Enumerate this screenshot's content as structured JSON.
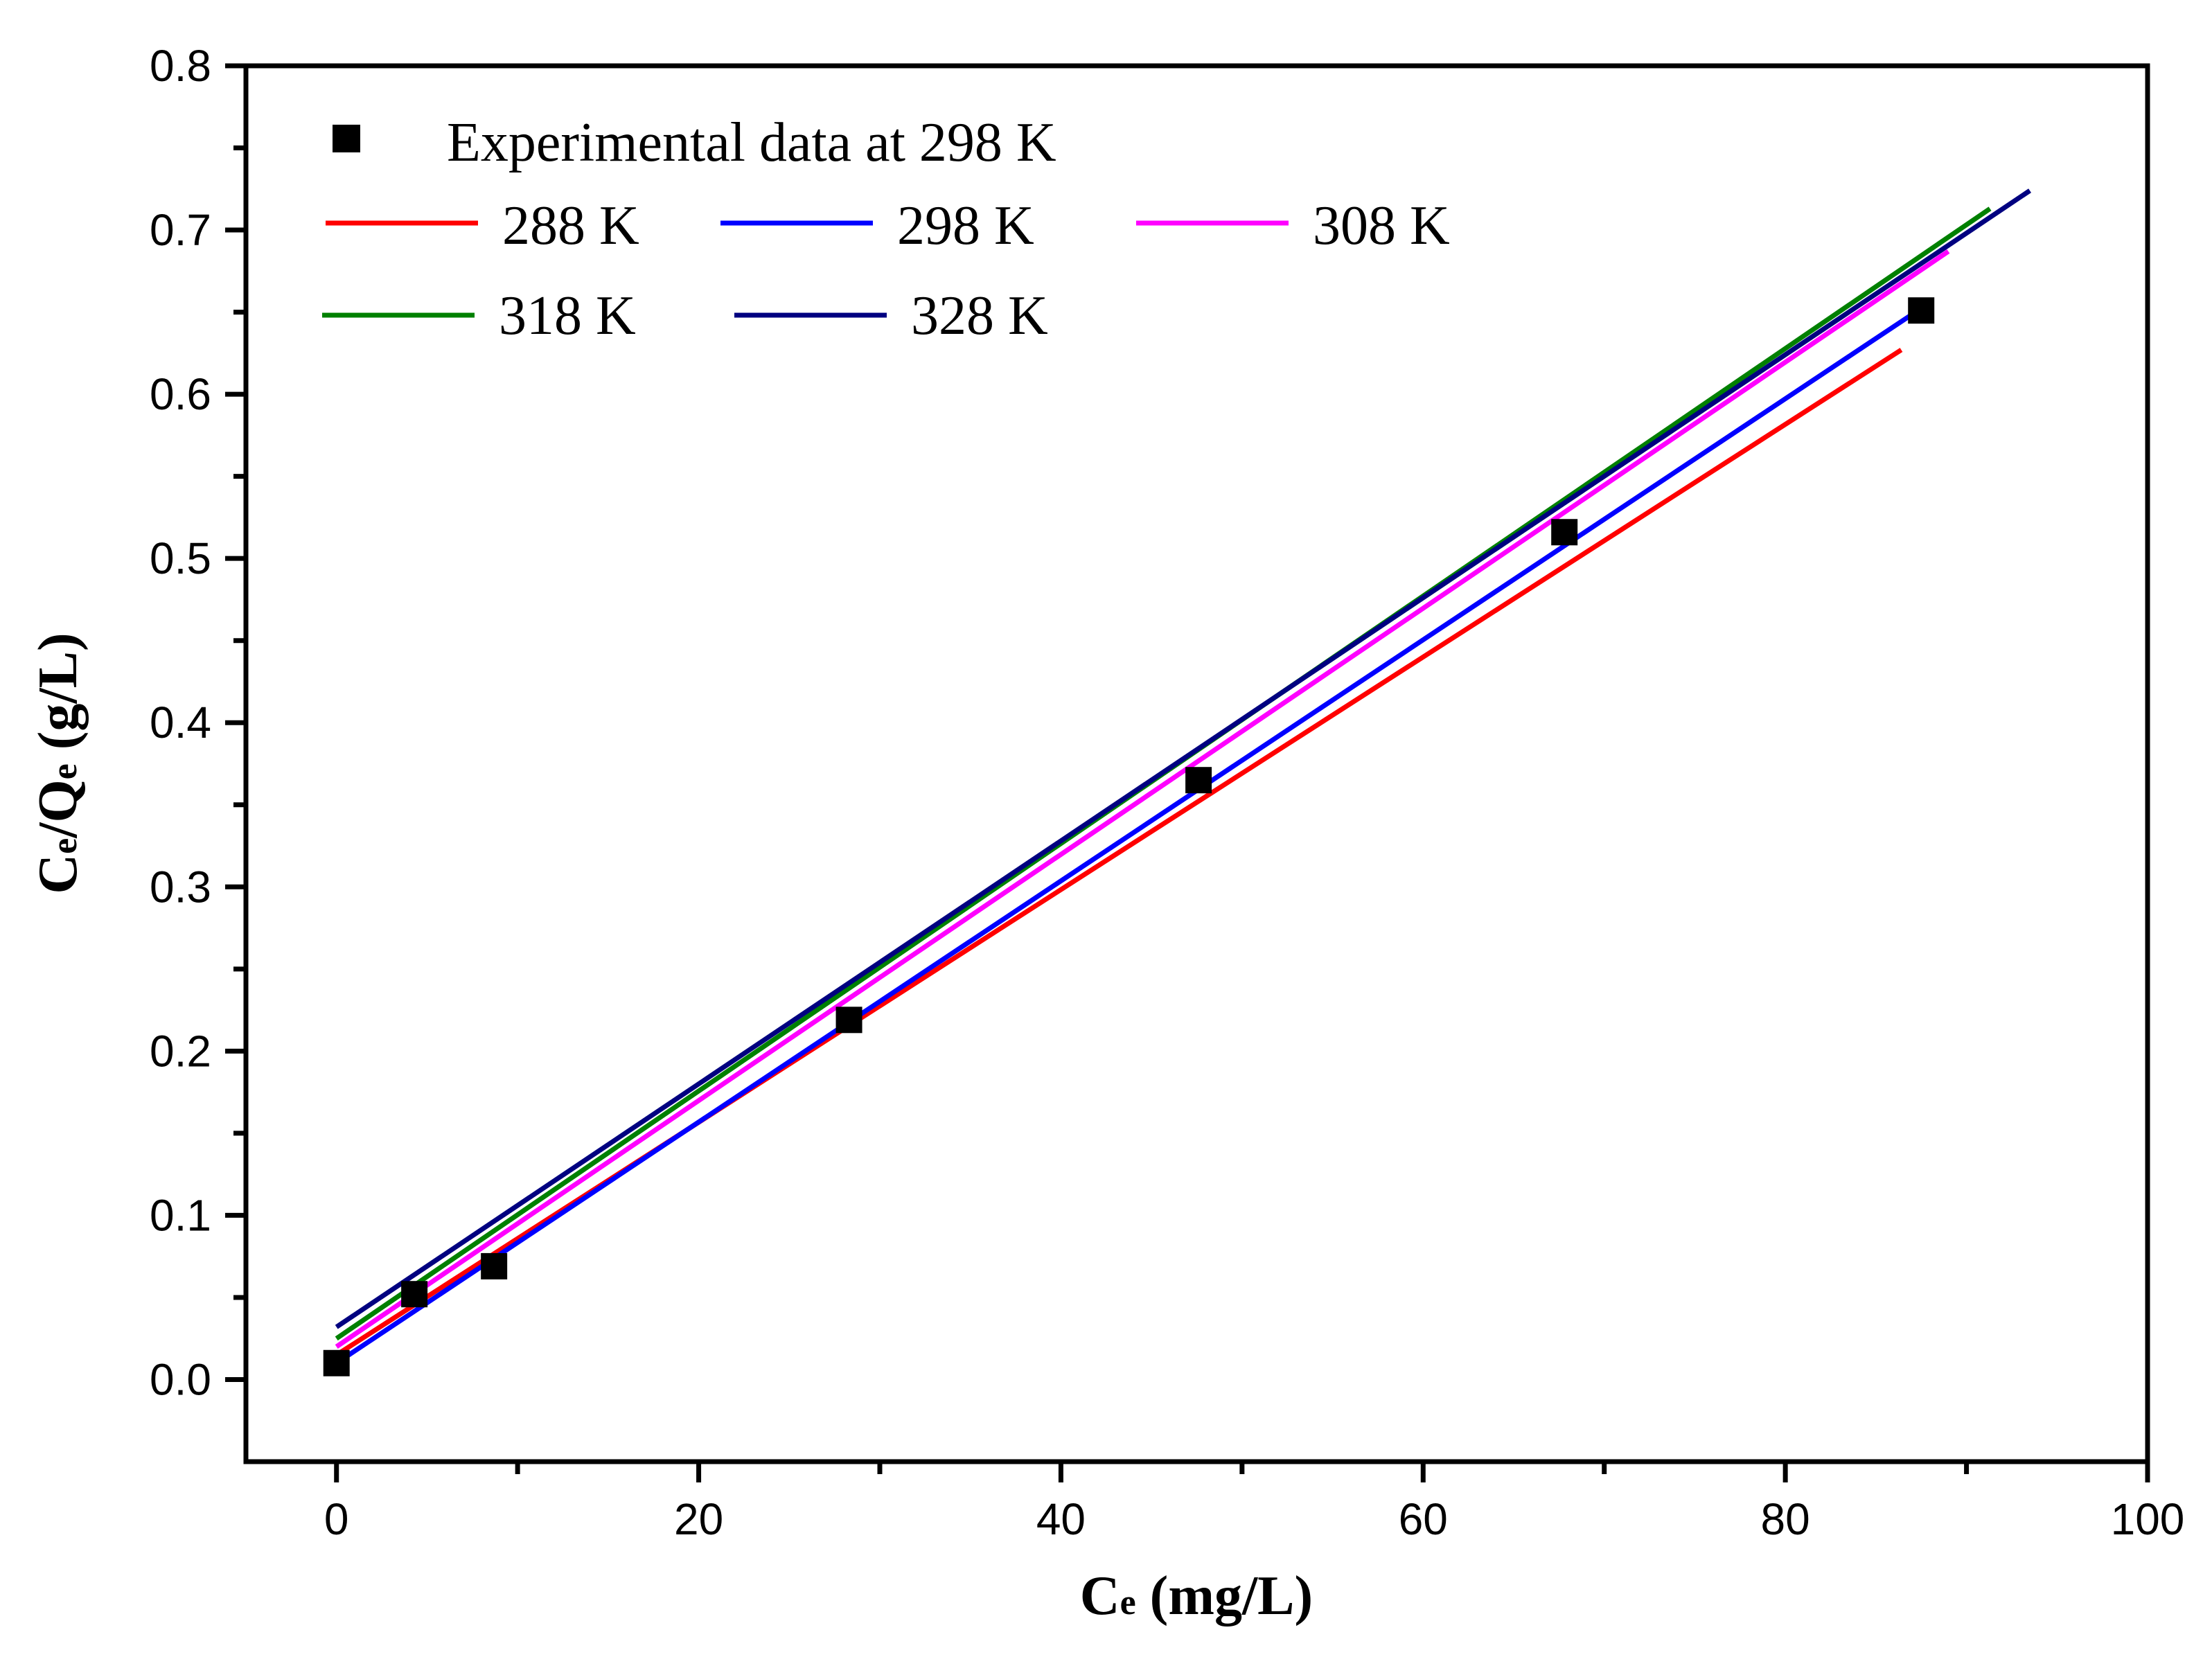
{
  "chart_data": {
    "type": "scatter",
    "xlabel": "Ce (mg/L)",
    "xlabel_main": "C",
    "xlabel_sub": "e",
    "xlabel_rest": " (mg/L)",
    "ylabel": "Ce/Qe (g/L)",
    "ylabel_c": "C",
    "ylabel_c_sub": "e",
    "ylabel_slash_q": "/Q",
    "ylabel_q_sub": "e",
    "ylabel_rest": " (g/L)",
    "xlim": [
      -5,
      100
    ],
    "ylim": [
      -0.05,
      0.8
    ],
    "xticks": [
      0,
      20,
      40,
      60,
      80,
      100
    ],
    "xtick_labels": [
      "0",
      "20",
      "40",
      "60",
      "80",
      "100"
    ],
    "yticks": [
      0.0,
      0.1,
      0.2,
      0.3,
      0.4,
      0.5,
      0.6,
      0.7,
      0.8
    ],
    "ytick_labels": [
      "0.0",
      "0.1",
      "0.2",
      "0.3",
      "0.4",
      "0.5",
      "0.6",
      "0.7",
      "0.8"
    ],
    "legend_position": "top-left",
    "points": {
      "name": "Experimental data at 298 K",
      "color": "#000000",
      "x": [
        0,
        4.3,
        8.7,
        28.3,
        47.6,
        67.8,
        87.5
      ],
      "y": [
        0.01,
        0.052,
        0.069,
        0.219,
        0.365,
        0.516,
        0.651
      ]
    },
    "series": [
      {
        "name": "288 K",
        "color": "#ff0000",
        "x": [
          0,
          86.4
        ],
        "y": [
          0.015,
          0.627
        ]
      },
      {
        "name": "298 K",
        "color": "#0000ff",
        "x": [
          0,
          88.0
        ],
        "y": [
          0.01,
          0.656
        ]
      },
      {
        "name": "308 K",
        "color": "#ff00ff",
        "x": [
          0,
          89.0
        ],
        "y": [
          0.02,
          0.687
        ]
      },
      {
        "name": "318 K",
        "color": "#008000",
        "x": [
          0,
          91.3
        ],
        "y": [
          0.025,
          0.713
        ]
      },
      {
        "name": "328 K",
        "color": "#000080",
        "x": [
          0,
          93.5
        ],
        "y": [
          0.032,
          0.724
        ]
      }
    ]
  }
}
